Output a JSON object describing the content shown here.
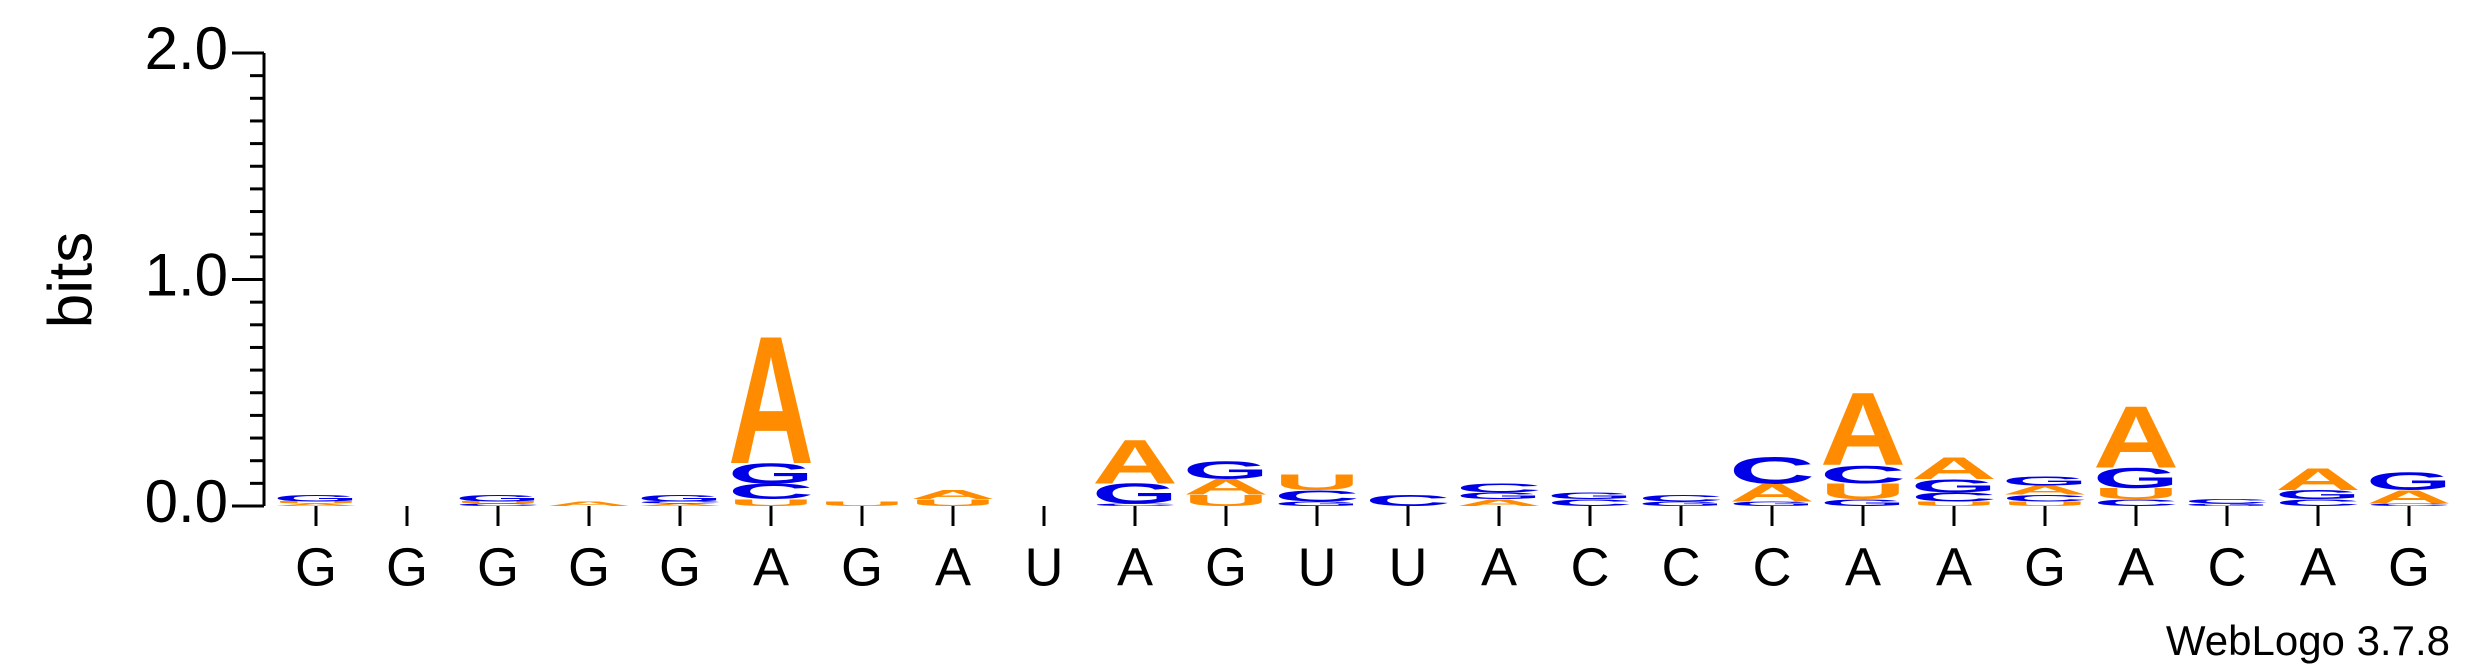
{
  "chart_data": {
    "type": "logo",
    "ylabel": "bits",
    "footer": "WebLogo 3.7.8",
    "categories": [
      "G",
      "G",
      "G",
      "G",
      "G",
      "A",
      "G",
      "A",
      "U",
      "A",
      "G",
      "U",
      "U",
      "A",
      "C",
      "C",
      "C",
      "A",
      "A",
      "G",
      "A",
      "C",
      "A",
      "G"
    ],
    "series": [
      {
        "name": "A",
        "color": "#ff8c00",
        "values": [
          0.01,
          0,
          0,
          0.02,
          0.01,
          0.58,
          0,
          0.04,
          0,
          0.2,
          0.07,
          0,
          0,
          0.03,
          0,
          0,
          0.08,
          0.33,
          0.1,
          0.04,
          0.28,
          0,
          0.1,
          0.06
        ]
      },
      {
        "name": "C",
        "color": "#0000e6",
        "values": [
          0,
          0,
          0.01,
          0,
          0.01,
          0.07,
          0,
          0,
          0,
          0.01,
          0,
          0.05,
          0.05,
          0.04,
          0.03,
          0.03,
          0.12,
          0.08,
          0.04,
          0.03,
          0.03,
          0.02,
          0.03,
          0.01
        ]
      },
      {
        "name": "G",
        "color": "#0000e6",
        "values": [
          0.03,
          0,
          0.03,
          0,
          0.03,
          0.09,
          0,
          0,
          0,
          0.09,
          0.08,
          0.02,
          0,
          0.03,
          0.03,
          0.02,
          0.02,
          0.03,
          0.06,
          0.04,
          0.09,
          0.01,
          0.04,
          0.08
        ]
      },
      {
        "name": "U",
        "color": "#ff8c00",
        "values": [
          0.01,
          0,
          0.01,
          0,
          0,
          0.03,
          0.02,
          0.03,
          0,
          0,
          0.05,
          0.07,
          0,
          0,
          0,
          0,
          0,
          0.07,
          0.02,
          0.02,
          0.05,
          0,
          0,
          0
        ]
      }
    ],
    "ylim": [
      0,
      2
    ],
    "yticks": [
      {
        "value": 0,
        "label": "0.0"
      },
      {
        "value": 1,
        "label": "1.0"
      },
      {
        "value": 2,
        "label": "2.0"
      }
    ],
    "yminorticks": [
      0.1,
      0.2,
      0.3,
      0.4,
      0.5,
      0.6,
      0.7,
      0.8,
      0.9,
      1.1,
      1.2,
      1.3,
      1.4,
      1.5,
      1.6,
      1.7,
      1.8,
      1.9
    ]
  }
}
